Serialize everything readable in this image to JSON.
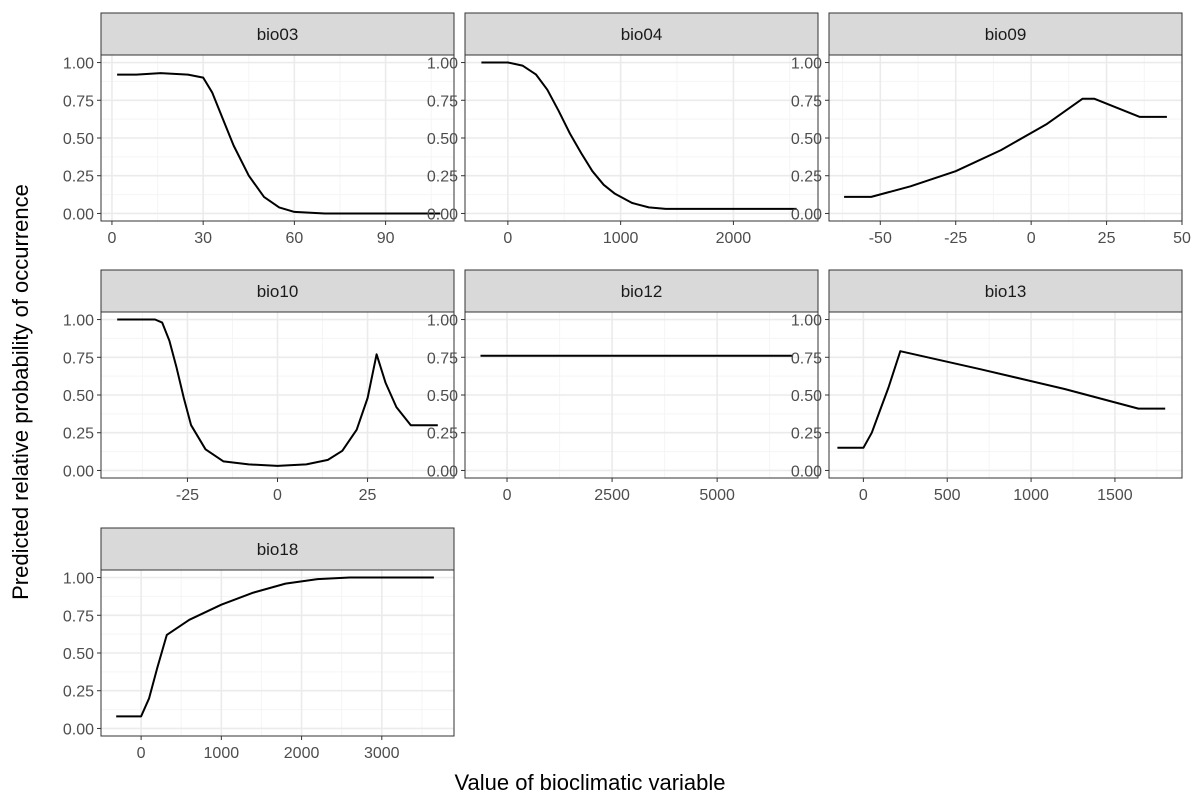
{
  "ylabel": "Predicted relative probability of occurrence",
  "xlabel": "Value of bioclimatic variable",
  "colors": {
    "strip": "#d9d9d9",
    "grid_major": "#ebebeb",
    "grid_minor": "#f5f5f5",
    "line": "#000000",
    "border": "#333333"
  },
  "chart_data": [
    {
      "type": "line",
      "title": "bio03",
      "xlim": [
        -3.6,
        112.5
      ],
      "ylim": [
        -0.05,
        1.05
      ],
      "xticks": [
        0,
        30,
        60,
        90
      ],
      "xtick_labels": [
        "0",
        "30",
        "60",
        "90"
      ],
      "yticks": [
        0,
        0.25,
        0.5,
        0.75,
        1
      ],
      "ytick_labels": [
        "0.00",
        "0.25",
        "0.50",
        "0.75",
        "1.00"
      ],
      "x": [
        1.7,
        8,
        16,
        25,
        30,
        33,
        36,
        40,
        45,
        50,
        55,
        60,
        70,
        80,
        108
      ],
      "y": [
        0.92,
        0.92,
        0.93,
        0.92,
        0.9,
        0.8,
        0.65,
        0.45,
        0.25,
        0.11,
        0.04,
        0.01,
        0.0,
        0.0,
        0.0
      ]
    },
    {
      "type": "line",
      "title": "bio04",
      "xlim": [
        -380,
        2750
      ],
      "ylim": [
        -0.05,
        1.05
      ],
      "xticks": [
        0,
        1000,
        2000
      ],
      "xtick_labels": [
        "0",
        "1000",
        "2000"
      ],
      "yticks": [
        0,
        0.25,
        0.5,
        0.75,
        1
      ],
      "ytick_labels": [
        "0.00",
        "0.25",
        "0.50",
        "0.75",
        "1.00"
      ],
      "x": [
        -235,
        0,
        130,
        250,
        350,
        450,
        550,
        650,
        750,
        850,
        950,
        1100,
        1250,
        1400,
        2560
      ],
      "y": [
        1.0,
        1.0,
        0.98,
        0.92,
        0.82,
        0.68,
        0.53,
        0.4,
        0.28,
        0.19,
        0.13,
        0.07,
        0.04,
        0.03,
        0.03
      ]
    },
    {
      "type": "line",
      "title": "bio09",
      "xlim": [
        -67,
        50
      ],
      "ylim": [
        -0.05,
        1.05
      ],
      "xticks": [
        -50,
        -25,
        0,
        25,
        50
      ],
      "xtick_labels": [
        "-50",
        "-25",
        "0",
        "25",
        "50"
      ],
      "yticks": [
        0,
        0.25,
        0.5,
        0.75,
        1
      ],
      "ytick_labels": [
        "0.00",
        "0.25",
        "0.50",
        "0.75",
        "1.00"
      ],
      "x": [
        -62,
        -53,
        -40,
        -25,
        -10,
        5,
        17,
        21,
        36,
        45
      ],
      "y": [
        0.11,
        0.11,
        0.18,
        0.28,
        0.42,
        0.59,
        0.76,
        0.76,
        0.64,
        0.64
      ]
    },
    {
      "type": "line",
      "title": "bio10",
      "xlim": [
        -49,
        49
      ],
      "ylim": [
        -0.05,
        1.05
      ],
      "xticks": [
        -25,
        0,
        25
      ],
      "xtick_labels": [
        "-25",
        "0",
        "25"
      ],
      "yticks": [
        0,
        0.25,
        0.5,
        0.75,
        1
      ],
      "ytick_labels": [
        "0.00",
        "0.25",
        "0.50",
        "0.75",
        "1.00"
      ],
      "x": [
        -44.5,
        -34,
        -32,
        -30,
        -28,
        -26,
        -24,
        -20,
        -15,
        -8,
        0,
        8,
        14,
        18,
        22,
        25,
        27.5,
        30,
        33,
        37,
        44.5
      ],
      "y": [
        1.0,
        1.0,
        0.98,
        0.86,
        0.68,
        0.48,
        0.3,
        0.14,
        0.06,
        0.04,
        0.03,
        0.04,
        0.07,
        0.13,
        0.27,
        0.48,
        0.77,
        0.58,
        0.42,
        0.3,
        0.3
      ]
    },
    {
      "type": "line",
      "title": "bio12",
      "xlim": [
        -1000,
        7400
      ],
      "ylim": [
        -0.05,
        1.05
      ],
      "xticks": [
        0,
        2500,
        5000
      ],
      "xtick_labels": [
        "0",
        "2500",
        "5000"
      ],
      "yticks": [
        0,
        0.25,
        0.5,
        0.75,
        1
      ],
      "ytick_labels": [
        "0.00",
        "0.25",
        "0.50",
        "0.75",
        "1.00"
      ],
      "x": [
        -630,
        6800
      ],
      "y": [
        0.76,
        0.76
      ]
    },
    {
      "type": "line",
      "title": "bio13",
      "xlim": [
        -205,
        1900
      ],
      "ylim": [
        -0.05,
        1.05
      ],
      "xticks": [
        0,
        500,
        1000,
        1500
      ],
      "xtick_labels": [
        "0",
        "500",
        "1000",
        "1500"
      ],
      "yticks": [
        0,
        0.25,
        0.5,
        0.75,
        1
      ],
      "ytick_labels": [
        "0.00",
        "0.25",
        "0.50",
        "0.75",
        "1.00"
      ],
      "x": [
        -155,
        0,
        50,
        100,
        150,
        220,
        700,
        1200,
        1640,
        1800
      ],
      "y": [
        0.15,
        0.15,
        0.25,
        0.4,
        0.55,
        0.79,
        0.67,
        0.54,
        0.41,
        0.41
      ]
    },
    {
      "type": "line",
      "title": "bio18",
      "xlim": [
        -500,
        3900
      ],
      "ylim": [
        -0.05,
        1.05
      ],
      "xticks": [
        0,
        1000,
        2000,
        3000
      ],
      "xtick_labels": [
        "0",
        "1000",
        "2000",
        "3000"
      ],
      "yticks": [
        0,
        0.25,
        0.5,
        0.75,
        1
      ],
      "ytick_labels": [
        "0.00",
        "0.25",
        "0.50",
        "0.75",
        "1.00"
      ],
      "x": [
        -310,
        0,
        100,
        200,
        320,
        600,
        1000,
        1400,
        1800,
        2200,
        2600,
        3650
      ],
      "y": [
        0.08,
        0.08,
        0.2,
        0.4,
        0.62,
        0.72,
        0.82,
        0.9,
        0.96,
        0.99,
        1.0,
        1.0
      ]
    }
  ]
}
